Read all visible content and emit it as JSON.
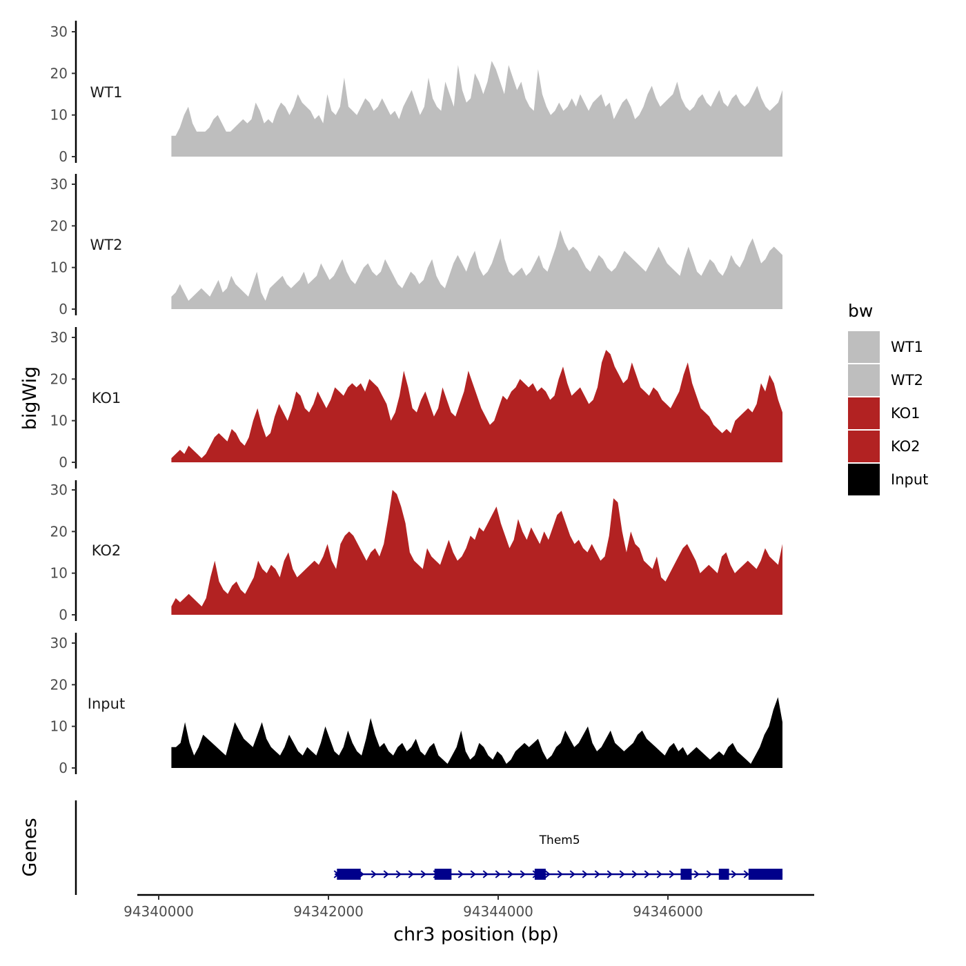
{
  "chart_data": {
    "type": "area",
    "chromosome": "chr3",
    "xlabel": "chr3 position (bp)",
    "ylabel": "bigWig",
    "xlim": [
      94339700,
      94347800
    ],
    "x_ticks": [
      94340000,
      94342000,
      94344000,
      94346000
    ],
    "x_tick_labels": [
      "94340000",
      "94342000",
      "94344000",
      "94346000"
    ],
    "ylim": [
      0,
      31
    ],
    "y_ticks": [
      0,
      10,
      20,
      30
    ],
    "y_tick_labels": [
      "0",
      "10",
      "20",
      "30"
    ],
    "legend": {
      "title": "bw",
      "position": "right",
      "items": [
        {
          "name": "WT1",
          "color": "#BEBEBE"
        },
        {
          "name": "WT2",
          "color": "#BEBEBE"
        },
        {
          "name": "KO1",
          "color": "#B22222"
        },
        {
          "name": "KO2",
          "color": "#B22222"
        },
        {
          "name": "Input",
          "color": "#000000"
        }
      ]
    },
    "region": {
      "start": 94340150,
      "end": 94347350
    },
    "series": [
      {
        "name": "WT1",
        "color": "#BEBEBE",
        "values": [
          5,
          5,
          7,
          10,
          12,
          8,
          6,
          6,
          6,
          7,
          9,
          10,
          8,
          6,
          6,
          7,
          8,
          9,
          8,
          9,
          13,
          11,
          8,
          9,
          8,
          11,
          13,
          12,
          10,
          12,
          15,
          13,
          12,
          11,
          9,
          10,
          8,
          15,
          11,
          10,
          12,
          19,
          12,
          11,
          10,
          12,
          14,
          13,
          11,
          12,
          14,
          12,
          10,
          11,
          9,
          12,
          14,
          16,
          13,
          10,
          12,
          19,
          14,
          12,
          11,
          18,
          15,
          12,
          22,
          16,
          13,
          14,
          20,
          18,
          15,
          18,
          23,
          21,
          18,
          15,
          22,
          19,
          16,
          18,
          14,
          12,
          11,
          21,
          15,
          12,
          10,
          11,
          13,
          11,
          12,
          14,
          12,
          15,
          13,
          11,
          13,
          14,
          15,
          12,
          13,
          9,
          11,
          13,
          14,
          12,
          9,
          10,
          12,
          15,
          17,
          14,
          12,
          13,
          14,
          15,
          18,
          14,
          12,
          11,
          12,
          14,
          15,
          13,
          12,
          14,
          16,
          13,
          12,
          14,
          15,
          13,
          12,
          13,
          15,
          17,
          14,
          12,
          11,
          12,
          13,
          16
        ]
      },
      {
        "name": "WT2",
        "color": "#BEBEBE",
        "values": [
          3,
          4,
          6,
          4,
          2,
          3,
          4,
          5,
          4,
          3,
          5,
          7,
          4,
          5,
          8,
          6,
          5,
          4,
          3,
          6,
          9,
          4,
          2,
          5,
          6,
          7,
          8,
          6,
          5,
          6,
          7,
          9,
          6,
          7,
          8,
          11,
          9,
          7,
          8,
          10,
          12,
          9,
          7,
          6,
          8,
          10,
          11,
          9,
          8,
          9,
          12,
          10,
          8,
          6,
          5,
          7,
          9,
          8,
          6,
          7,
          10,
          12,
          8,
          6,
          5,
          8,
          11,
          13,
          11,
          9,
          12,
          14,
          10,
          8,
          9,
          11,
          14,
          17,
          12,
          9,
          8,
          9,
          10,
          8,
          9,
          11,
          13,
          10,
          9,
          12,
          15,
          19,
          16,
          14,
          15,
          14,
          12,
          10,
          9,
          11,
          13,
          12,
          10,
          9,
          10,
          12,
          14,
          13,
          12,
          11,
          10,
          9,
          11,
          13,
          15,
          13,
          11,
          10,
          9,
          8,
          12,
          15,
          12,
          9,
          8,
          10,
          12,
          11,
          9,
          8,
          10,
          13,
          11,
          10,
          12,
          15,
          17,
          14,
          11,
          12,
          14,
          15,
          14,
          13
        ]
      },
      {
        "name": "KO1",
        "color": "#B22222",
        "values": [
          1,
          2,
          3,
          2,
          4,
          3,
          2,
          1,
          2,
          4,
          6,
          7,
          6,
          5,
          8,
          7,
          5,
          4,
          6,
          10,
          13,
          9,
          6,
          7,
          11,
          14,
          12,
          10,
          13,
          17,
          16,
          13,
          12,
          14,
          17,
          15,
          13,
          15,
          18,
          17,
          16,
          18,
          19,
          18,
          19,
          17,
          20,
          19,
          18,
          16,
          14,
          10,
          12,
          16,
          22,
          18,
          13,
          12,
          15,
          17,
          14,
          11,
          13,
          18,
          15,
          12,
          11,
          14,
          17,
          22,
          19,
          16,
          13,
          11,
          9,
          10,
          13,
          16,
          15,
          17,
          18,
          20,
          19,
          18,
          19,
          17,
          18,
          17,
          15,
          16,
          20,
          23,
          19,
          16,
          17,
          18,
          16,
          14,
          15,
          18,
          24,
          27,
          26,
          23,
          21,
          19,
          20,
          24,
          21,
          18,
          17,
          16,
          18,
          17,
          15,
          14,
          13,
          15,
          17,
          21,
          24,
          19,
          16,
          13,
          12,
          11,
          9,
          8,
          7,
          8,
          7,
          10,
          11,
          12,
          13,
          12,
          14,
          19,
          17,
          21,
          19,
          15,
          12
        ]
      },
      {
        "name": "KO2",
        "color": "#B22222",
        "values": [
          2,
          4,
          3,
          4,
          5,
          4,
          3,
          2,
          4,
          9,
          13,
          8,
          6,
          5,
          7,
          8,
          6,
          5,
          7,
          9,
          13,
          11,
          10,
          12,
          11,
          9,
          13,
          15,
          11,
          9,
          10,
          11,
          12,
          13,
          12,
          14,
          17,
          13,
          11,
          17,
          19,
          20,
          19,
          17,
          15,
          13,
          15,
          16,
          14,
          17,
          23,
          30,
          29,
          26,
          22,
          15,
          13,
          12,
          11,
          16,
          14,
          13,
          12,
          15,
          18,
          15,
          13,
          14,
          16,
          19,
          18,
          21,
          20,
          22,
          24,
          26,
          22,
          19,
          16,
          18,
          23,
          20,
          18,
          21,
          19,
          17,
          20,
          18,
          21,
          24,
          25,
          22,
          19,
          17,
          18,
          16,
          15,
          17,
          15,
          13,
          14,
          19,
          28,
          27,
          20,
          15,
          20,
          17,
          16,
          13,
          12,
          11,
          14,
          9,
          8,
          10,
          12,
          14,
          16,
          17,
          15,
          13,
          10,
          11,
          12,
          11,
          10,
          14,
          15,
          12,
          10,
          11,
          12,
          13,
          12,
          11,
          13,
          16,
          14,
          13,
          12,
          17
        ]
      },
      {
        "name": "Input",
        "color": "#000000",
        "values": [
          5,
          5,
          6,
          11,
          6,
          3,
          5,
          8,
          7,
          6,
          5,
          4,
          3,
          7,
          11,
          9,
          7,
          6,
          5,
          8,
          11,
          7,
          5,
          4,
          3,
          5,
          8,
          6,
          4,
          3,
          5,
          4,
          3,
          6,
          10,
          7,
          4,
          3,
          5,
          9,
          6,
          4,
          3,
          7,
          12,
          8,
          5,
          6,
          4,
          3,
          5,
          6,
          4,
          5,
          7,
          4,
          3,
          5,
          6,
          3,
          2,
          1,
          3,
          5,
          9,
          4,
          2,
          3,
          6,
          5,
          3,
          2,
          4,
          3,
          1,
          2,
          4,
          5,
          6,
          5,
          6,
          7,
          4,
          2,
          3,
          5,
          6,
          9,
          7,
          5,
          6,
          8,
          10,
          6,
          4,
          5,
          7,
          9,
          6,
          5,
          4,
          5,
          6,
          8,
          9,
          7,
          6,
          5,
          4,
          3,
          5,
          6,
          4,
          5,
          3,
          4,
          5,
          4,
          3,
          2,
          3,
          4,
          3,
          5,
          6,
          4,
          3,
          2,
          1,
          3,
          5,
          8,
          10,
          14,
          17,
          11
        ]
      }
    ],
    "genes": [
      {
        "name": "Them5",
        "strand": "+",
        "color": "#00008B",
        "start": 94342100,
        "end": 94347350,
        "exons": [
          [
            94342100,
            94342380
          ],
          [
            94343250,
            94343450
          ],
          [
            94344430,
            94344560
          ],
          [
            94346150,
            94346280
          ],
          [
            94346600,
            94346720
          ],
          [
            94346950,
            94347350
          ]
        ]
      }
    ]
  }
}
